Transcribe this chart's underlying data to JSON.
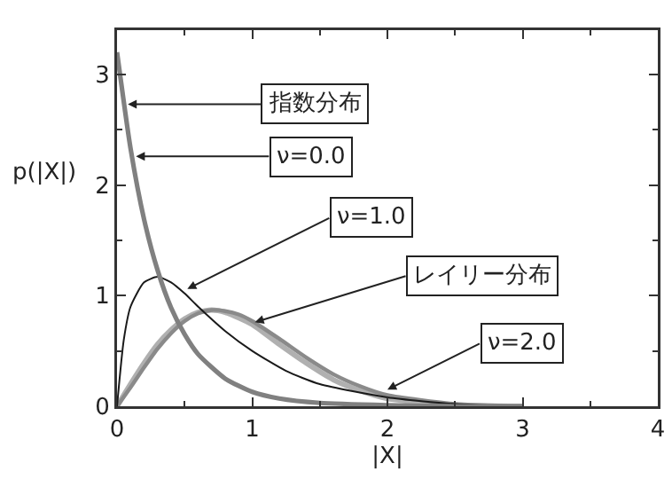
{
  "chart_data": {
    "type": "line",
    "xlabel": "|X|",
    "ylabel": "p(|X|)",
    "xlim": [
      0,
      4
    ],
    "xticks": [
      0,
      1,
      2,
      3,
      4
    ],
    "ylim": [
      0,
      3.4
    ],
    "yticks": [
      0,
      1,
      2,
      3
    ],
    "grid": false,
    "legend": false,
    "marker": "none",
    "line_style": "solid",
    "series": [
      {
        "color": "#b0b0b0",
        "x": [
          0,
          0.1,
          0.2,
          0.3,
          0.4,
          0.5,
          0.6,
          0.7,
          0.8,
          0.9,
          1.0,
          1.2,
          1.4,
          1.6,
          1.8,
          2.0,
          2.5,
          3.0
        ],
        "values": [
          0,
          0.2,
          0.39,
          0.56,
          0.69,
          0.79,
          0.85,
          0.87,
          0.85,
          0.8,
          0.74,
          0.56,
          0.39,
          0.24,
          0.14,
          0.07,
          0.01,
          0
        ]
      },
      {
        "color": "#8a8a8a",
        "x": [
          0,
          0.1,
          0.2,
          0.3,
          0.4,
          0.5,
          0.6,
          0.7,
          0.8,
          0.9,
          1.0,
          1.2,
          1.4,
          1.6,
          1.8,
          2.0,
          2.5,
          3.0
        ],
        "values": [
          0,
          0.17,
          0.35,
          0.52,
          0.66,
          0.77,
          0.84,
          0.87,
          0.86,
          0.83,
          0.77,
          0.61,
          0.44,
          0.29,
          0.18,
          0.1,
          0.02,
          0
        ]
      },
      {
        "color": "#1a1a1a",
        "x": [
          0,
          0.05,
          0.1,
          0.2,
          0.3,
          0.4,
          0.5,
          0.6,
          0.8,
          1.0,
          1.25,
          1.5,
          2.0,
          2.5,
          3.0
        ],
        "values": [
          0,
          0.6,
          0.9,
          1.12,
          1.17,
          1.12,
          1.02,
          0.9,
          0.68,
          0.5,
          0.32,
          0.2,
          0.08,
          0.02,
          0
        ]
      },
      {
        "color": "#808080",
        "x": [
          0,
          0.1,
          0.2,
          0.3,
          0.4,
          0.5,
          0.6,
          0.8,
          1.0,
          1.2,
          1.5,
          2.0,
          2.5,
          3.0
        ],
        "values": [
          3.2,
          2.33,
          1.69,
          1.23,
          0.89,
          0.65,
          0.47,
          0.25,
          0.13,
          0.07,
          0.03,
          0.01,
          0,
          0
        ]
      }
    ],
    "annotations": [
      {
        "text": "指数分布",
        "x": 0.08,
        "y": 2.73
      },
      {
        "text": "ν=0.0",
        "x": 0.14,
        "y": 2.26
      },
      {
        "text": "ν=1.0",
        "x": 0.52,
        "y": 1.06
      },
      {
        "text": "レイリー分布",
        "x": 1.02,
        "y": 0.76
      },
      {
        "text": "ν=2.0",
        "x": 2.0,
        "y": 0.15
      }
    ]
  }
}
